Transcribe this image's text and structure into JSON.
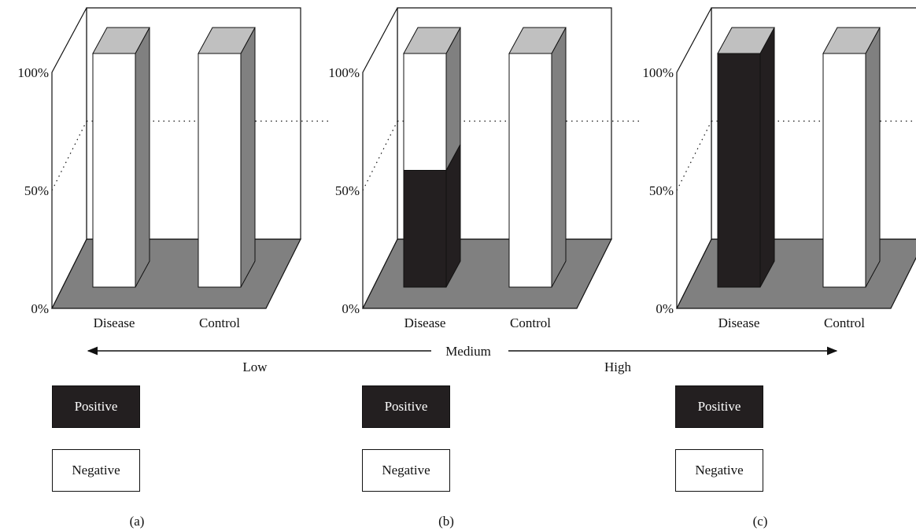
{
  "colors": {
    "positive": "#231f20",
    "negative": "#ffffff",
    "floor": "#808080",
    "bar_side": "#808080",
    "bar_top": "#c0c0c0",
    "axis": "#111111"
  },
  "chart_data": [
    {
      "type": "bar",
      "panel": "(a)",
      "categories": [
        "Disease",
        "Control"
      ],
      "series": [
        {
          "name": "Positive",
          "values": [
            0,
            0
          ]
        },
        {
          "name": "Negative",
          "values": [
            100,
            100
          ]
        }
      ],
      "yticks": [
        "0%",
        "50%",
        "100%"
      ],
      "ylim": [
        0,
        100
      ],
      "stacked": true,
      "grid": "dotted line near 75%"
    },
    {
      "type": "bar",
      "panel": "(b)",
      "categories": [
        "Disease",
        "Control"
      ],
      "series": [
        {
          "name": "Positive",
          "values": [
            50,
            0
          ]
        },
        {
          "name": "Negative",
          "values": [
            50,
            100
          ]
        }
      ],
      "yticks": [
        "0%",
        "50%",
        "100%"
      ],
      "ylim": [
        0,
        100
      ],
      "stacked": true,
      "grid": "dotted line near 75%"
    },
    {
      "type": "bar",
      "panel": "(c)",
      "categories": [
        "Disease",
        "Control"
      ],
      "series": [
        {
          "name": "Positive",
          "values": [
            100,
            0
          ]
        },
        {
          "name": "Negative",
          "values": [
            0,
            100
          ]
        }
      ],
      "yticks": [
        "0%",
        "50%",
        "100%"
      ],
      "ylim": [
        0,
        100
      ],
      "stacked": true,
      "grid": "dotted line near 75%"
    }
  ],
  "scale": {
    "center_label": "Medium",
    "left_label": "Low",
    "right_label": "High"
  },
  "legend": {
    "positive_label": "Positive",
    "negative_label": "Negative"
  },
  "panel_labels": [
    "(a)",
    "(b)",
    "(c)"
  ]
}
